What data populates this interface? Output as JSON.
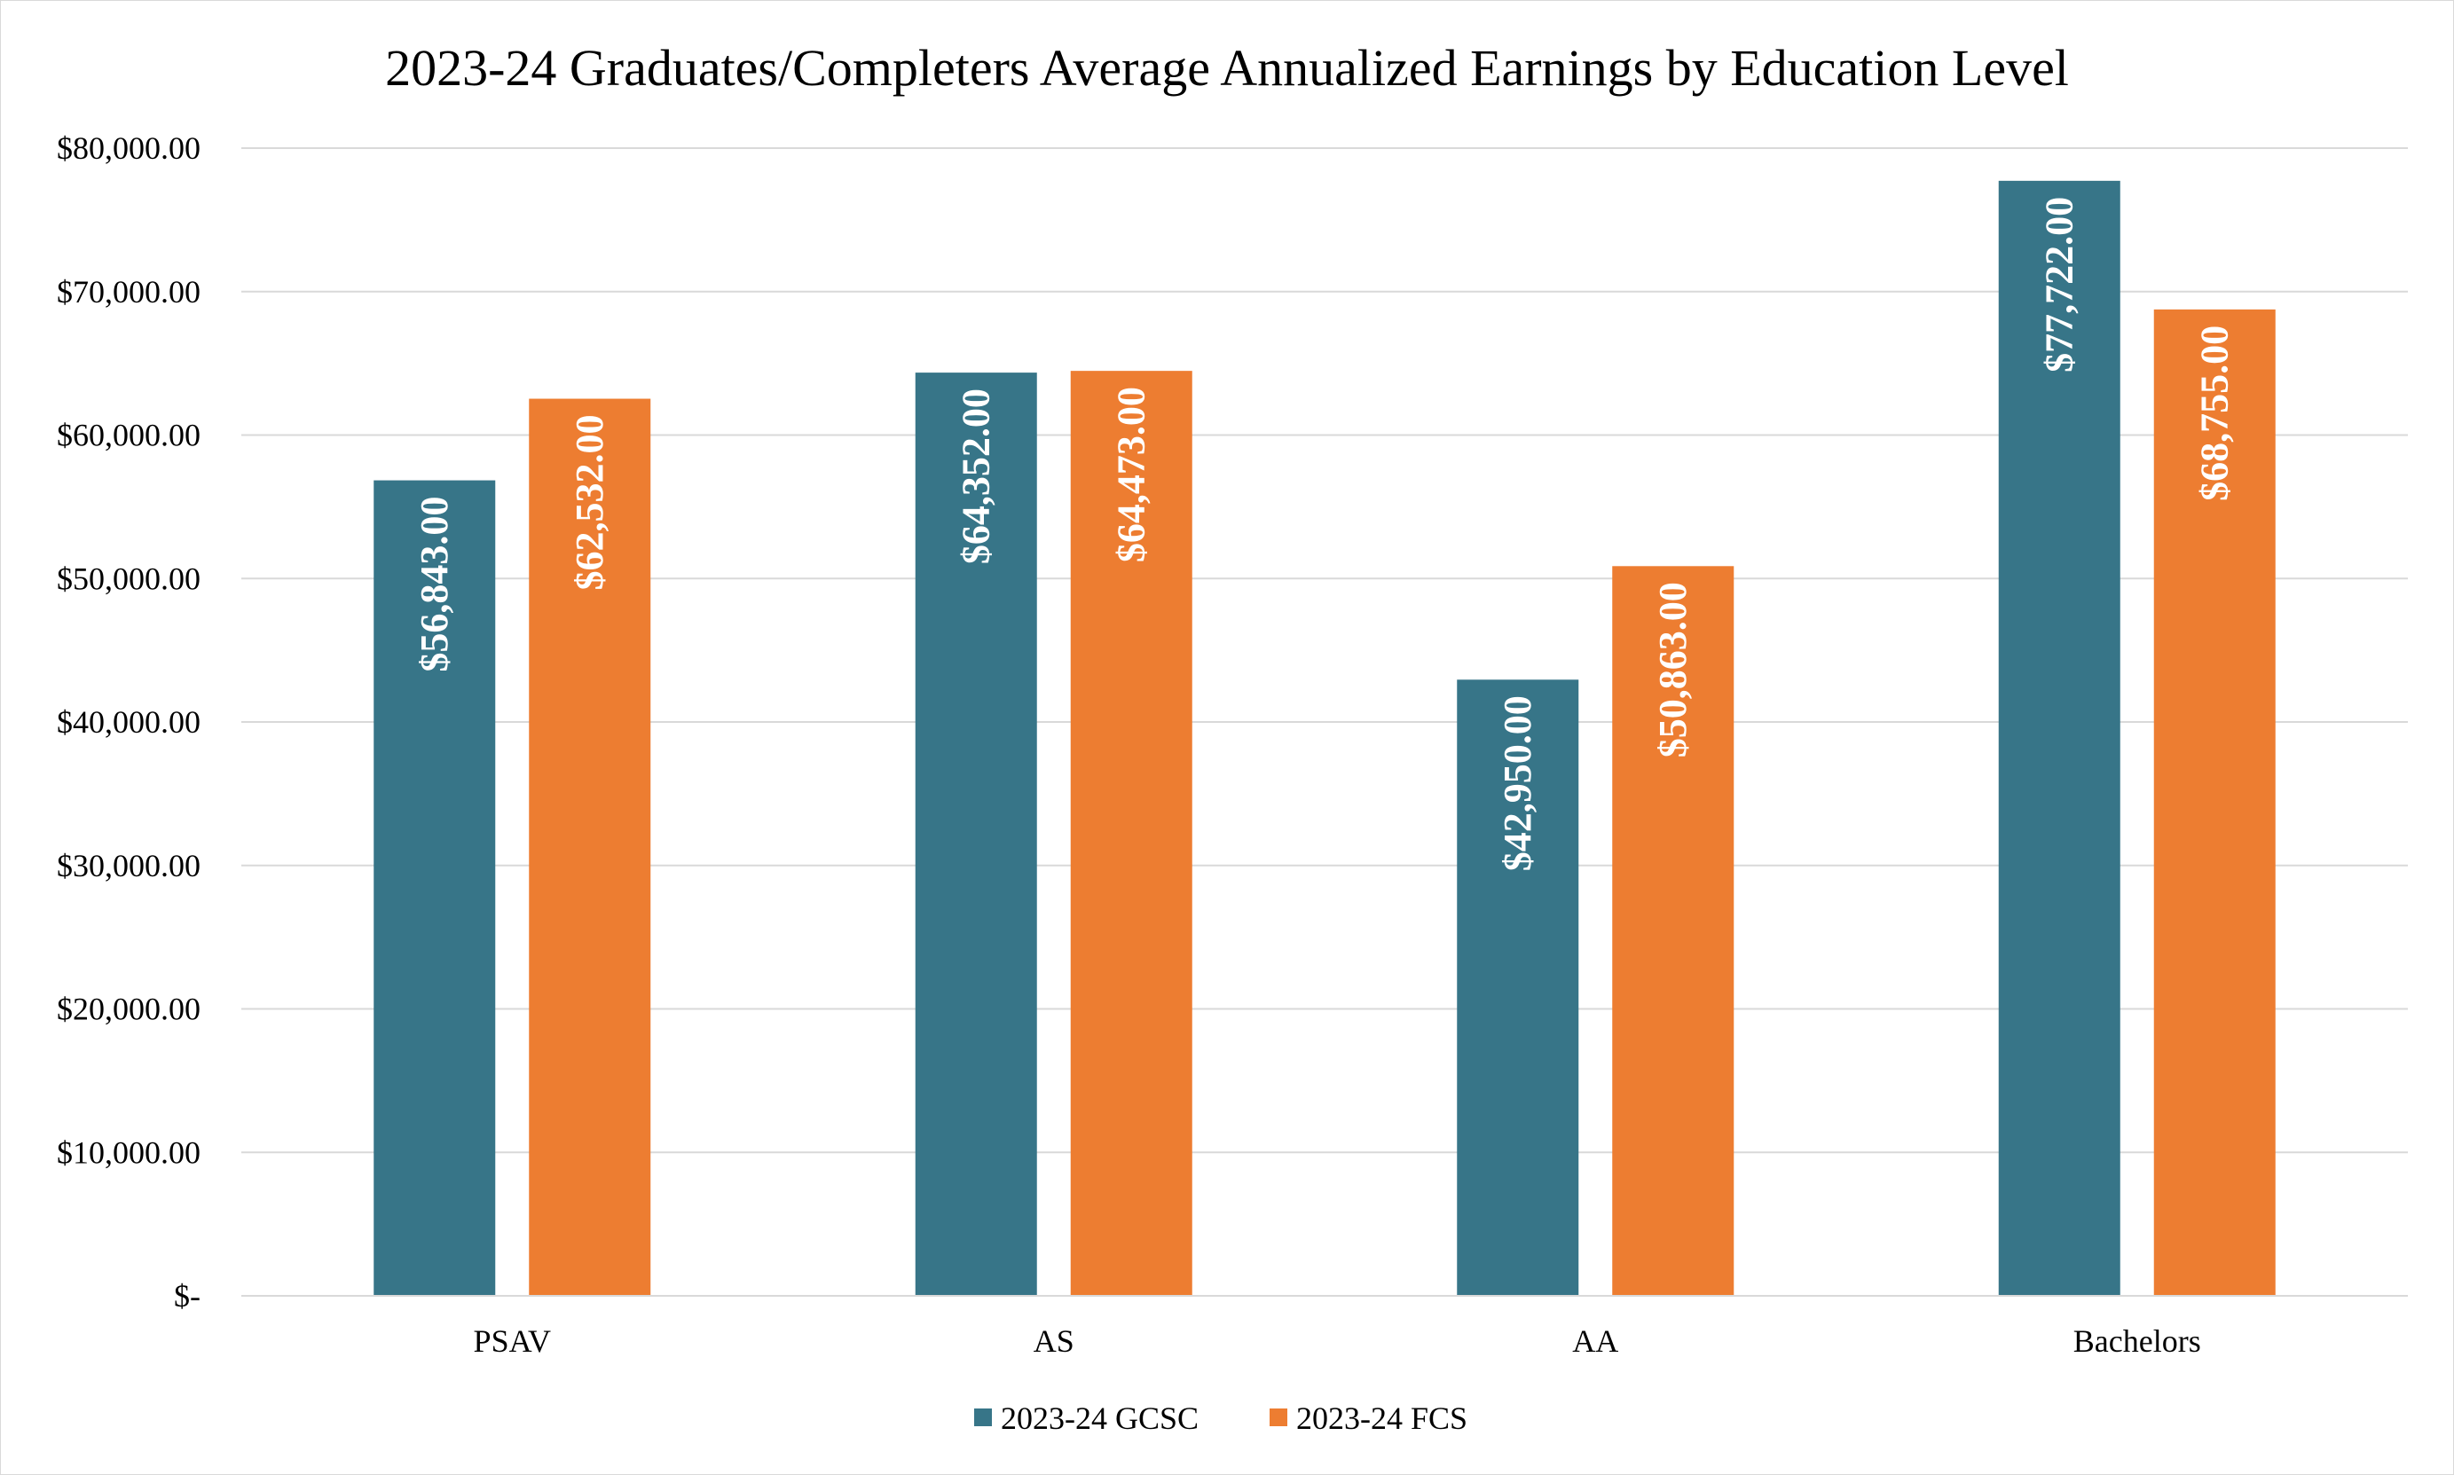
{
  "chart_data": {
    "type": "bar",
    "title": "2023-24 Graduates/Completers Average Annualized Earnings by Education Level",
    "xlabel": "",
    "ylabel": "",
    "categories": [
      "PSAV",
      "AS",
      "AA",
      "Bachelors"
    ],
    "series": [
      {
        "name": "2023-24 GCSC",
        "color": "#377588",
        "values": [
          56843,
          64352,
          42950,
          77722
        ],
        "labels": [
          "$56,843.00",
          "$64,352.00",
          "$42,950.00",
          "$77,722.00"
        ]
      },
      {
        "name": "2023-24 FCS",
        "color": "#ed7d31",
        "values": [
          62532,
          64473,
          50863,
          68755
        ],
        "labels": [
          "$62,532.00",
          "$64,473.00",
          "$50,863.00",
          "$68,755.00"
        ]
      }
    ],
    "ylim": [
      0,
      80000
    ],
    "yticks": [
      0,
      10000,
      20000,
      30000,
      40000,
      50000,
      60000,
      70000,
      80000
    ],
    "ytick_labels": [
      "$-",
      "$10,000.00",
      "$20,000.00",
      "$30,000.00",
      "$40,000.00",
      "$50,000.00",
      "$60,000.00",
      "$70,000.00",
      "$80,000.00"
    ],
    "grid": true,
    "gridline_color": "#d9d9d9",
    "legend_position": "bottom"
  }
}
